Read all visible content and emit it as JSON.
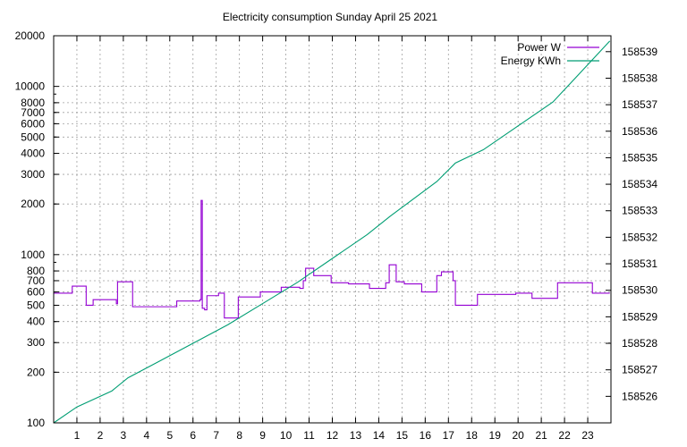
{
  "chart_data": {
    "type": "line",
    "title": "Electricity consumption Sunday April 25 2021",
    "xlabel": "",
    "ylabel": "",
    "y2label": "",
    "grid": true,
    "legend_placement": "top-right",
    "y_scale": "log",
    "xlim": [
      0,
      24
    ],
    "ylim": [
      100,
      20000
    ],
    "y2lim": [
      158525,
      158539.6
    ],
    "x_ticks": [
      1,
      2,
      3,
      4,
      5,
      6,
      7,
      8,
      9,
      10,
      11,
      12,
      13,
      14,
      15,
      16,
      17,
      18,
      19,
      20,
      21,
      22,
      23
    ],
    "y_ticks": [
      {
        "v": 100,
        "label": "100"
      },
      {
        "v": 200,
        "label": "200"
      },
      {
        "v": 300,
        "label": "300"
      },
      {
        "v": 400,
        "label": "400"
      },
      {
        "v": 500,
        "label": "500"
      },
      {
        "v": 600,
        "label": "600"
      },
      {
        "v": 700,
        "label": "700"
      },
      {
        "v": 800,
        "label": "800"
      },
      {
        "v": 1000,
        "label": "1000"
      },
      {
        "v": 2000,
        "label": "2000"
      },
      {
        "v": 3000,
        "label": "3000"
      },
      {
        "v": 4000,
        "label": "4000"
      },
      {
        "v": 5000,
        "label": "5000"
      },
      {
        "v": 6000,
        "label": "6000"
      },
      {
        "v": 7000,
        "label": "7000"
      },
      {
        "v": 8000,
        "label": "8000"
      },
      {
        "v": 10000,
        "label": "10000"
      },
      {
        "v": 20000,
        "label": "20000"
      }
    ],
    "y2_ticks": [
      158526,
      158527,
      158528,
      158529,
      158530,
      158531,
      158532,
      158533,
      158534,
      158535,
      158536,
      158537,
      158538,
      158539
    ],
    "series": [
      {
        "name": "Power W",
        "axis": "y",
        "color": "#9400d3",
        "step": true,
        "points": [
          [
            0.0,
            590
          ],
          [
            0.8,
            650
          ],
          [
            1.4,
            500
          ],
          [
            1.7,
            540
          ],
          [
            2.7,
            510
          ],
          [
            2.75,
            690
          ],
          [
            3.4,
            490
          ],
          [
            5.3,
            530
          ],
          [
            6.3,
            540
          ],
          [
            6.35,
            2100
          ],
          [
            6.4,
            480
          ],
          [
            6.5,
            470
          ],
          [
            6.6,
            570
          ],
          [
            7.1,
            590
          ],
          [
            7.35,
            420
          ],
          [
            7.95,
            560
          ],
          [
            8.9,
            600
          ],
          [
            9.8,
            640
          ],
          [
            10.6,
            630
          ],
          [
            10.75,
            700
          ],
          [
            10.85,
            830
          ],
          [
            11.2,
            750
          ],
          [
            11.95,
            680
          ],
          [
            12.7,
            670
          ],
          [
            13.6,
            630
          ],
          [
            14.3,
            680
          ],
          [
            14.45,
            870
          ],
          [
            14.75,
            690
          ],
          [
            15.1,
            670
          ],
          [
            15.85,
            600
          ],
          [
            16.5,
            750
          ],
          [
            16.7,
            790
          ],
          [
            17.2,
            700
          ],
          [
            17.3,
            500
          ],
          [
            18.25,
            580
          ],
          [
            19.1,
            580
          ],
          [
            19.9,
            590
          ],
          [
            20.6,
            550
          ],
          [
            21.7,
            680
          ],
          [
            23.2,
            590
          ],
          [
            23.95,
            590
          ]
        ]
      },
      {
        "name": "Energy KWh",
        "axis": "y2",
        "color": "#009e73",
        "step": false,
        "points": [
          [
            0.0,
            158525.0
          ],
          [
            1.0,
            158525.6
          ],
          [
            2.5,
            158526.2
          ],
          [
            3.2,
            158526.7
          ],
          [
            4.5,
            158527.3
          ],
          [
            6.0,
            158528.0
          ],
          [
            7.5,
            158528.7
          ],
          [
            9.0,
            158529.5
          ],
          [
            10.5,
            158530.3
          ],
          [
            12.0,
            158531.2
          ],
          [
            13.5,
            158532.1
          ],
          [
            14.5,
            158532.8
          ],
          [
            16.5,
            158534.1
          ],
          [
            17.3,
            158534.8
          ],
          [
            18.5,
            158535.3
          ],
          [
            21.5,
            158537.1
          ],
          [
            23.95,
            158539.4
          ]
        ]
      }
    ]
  }
}
